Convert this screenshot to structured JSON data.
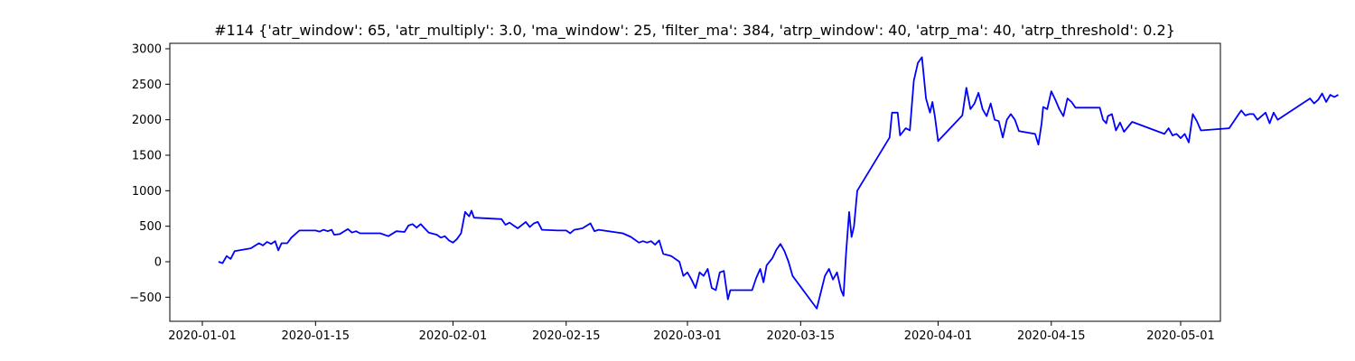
{
  "chart_data": {
    "type": "line",
    "title": "#114 {'atr_window': 65, 'atr_multiply': 3.0, 'ma_window': 25, 'filter_ma': 384, 'atrp_window': 40, 'atrp_ma': 40, 'atrp_threshold': 0.2}",
    "xlabel": "",
    "ylabel": "",
    "xlim": [
      "2019-12-28",
      "2020-05-02"
    ],
    "ylim": [
      -850,
      3100
    ],
    "grid": false,
    "x_ticks": [
      "2020-01-01",
      "2020-01-15",
      "2020-02-01",
      "2020-02-15",
      "2020-03-01",
      "2020-03-15",
      "2020-04-01",
      "2020-04-15",
      "2020-05-01"
    ],
    "y_ticks": [
      -500,
      0,
      500,
      1000,
      1500,
      2000,
      2500,
      3000
    ],
    "line_color": "#0000ff",
    "series": [
      {
        "points": [
          [
            "2020-01-03",
            0
          ],
          [
            "2020-01-03.5",
            -20
          ],
          [
            "2020-01-04",
            80
          ],
          [
            "2020-01-04.5",
            40
          ],
          [
            "2020-01-05",
            150
          ],
          [
            "2020-01-07",
            190
          ],
          [
            "2020-01-08",
            260
          ],
          [
            "2020-01-08.5",
            230
          ],
          [
            "2020-01-09",
            280
          ],
          [
            "2020-01-09.5",
            250
          ],
          [
            "2020-01-10",
            290
          ],
          [
            "2020-01-10.4",
            160
          ],
          [
            "2020-01-10.8",
            260
          ],
          [
            "2020-01-11.5",
            260
          ],
          [
            "2020-01-12",
            340
          ],
          [
            "2020-01-13",
            440
          ],
          [
            "2020-01-15",
            440
          ],
          [
            "2020-01-15.5",
            425
          ],
          [
            "2020-01-16",
            450
          ],
          [
            "2020-01-16.5",
            430
          ],
          [
            "2020-01-17",
            450
          ],
          [
            "2020-01-17.3",
            380
          ],
          [
            "2020-01-18",
            390
          ],
          [
            "2020-01-19",
            460
          ],
          [
            "2020-01-19.5",
            410
          ],
          [
            "2020-01-20",
            430
          ],
          [
            "2020-01-20.5",
            400
          ],
          [
            "2020-01-23",
            400
          ],
          [
            "2020-01-24",
            360
          ],
          [
            "2020-01-25",
            430
          ],
          [
            "2020-01-26",
            420
          ],
          [
            "2020-01-26.5",
            510
          ],
          [
            "2020-01-27",
            530
          ],
          [
            "2020-01-27.5",
            480
          ],
          [
            "2020-01-28",
            530
          ],
          [
            "2020-01-28.5",
            470
          ],
          [
            "2020-01-29",
            410
          ],
          [
            "2020-01-30",
            380
          ],
          [
            "2020-01-30.5",
            340
          ],
          [
            "2020-01-31",
            360
          ],
          [
            "2020-01-31.5",
            300
          ],
          [
            "2020-02-01",
            270
          ],
          [
            "2020-02-01.5",
            320
          ],
          [
            "2020-02-02",
            400
          ],
          [
            "2020-02-02.5",
            700
          ],
          [
            "2020-02-03",
            640
          ],
          [
            "2020-02-03.3",
            720
          ],
          [
            "2020-02-03.6",
            620
          ],
          [
            "2020-02-07",
            600
          ],
          [
            "2020-02-07.5",
            520
          ],
          [
            "2020-02-08",
            550
          ],
          [
            "2020-02-08.5",
            510
          ],
          [
            "2020-02-09",
            470
          ],
          [
            "2020-02-10",
            560
          ],
          [
            "2020-02-10.5",
            490
          ],
          [
            "2020-02-11",
            540
          ],
          [
            "2020-02-11.5",
            560
          ],
          [
            "2020-02-12",
            450
          ],
          [
            "2020-02-14",
            440
          ],
          [
            "2020-02-15",
            440
          ],
          [
            "2020-02-15.5",
            400
          ],
          [
            "2020-02-16",
            450
          ],
          [
            "2020-02-17",
            470
          ],
          [
            "2020-02-18",
            540
          ],
          [
            "2020-02-18.5",
            430
          ],
          [
            "2020-02-19",
            450
          ],
          [
            "2020-02-22",
            400
          ],
          [
            "2020-02-23",
            350
          ],
          [
            "2020-02-24",
            270
          ],
          [
            "2020-02-24.5",
            290
          ],
          [
            "2020-02-25",
            270
          ],
          [
            "2020-02-25.5",
            290
          ],
          [
            "2020-02-26",
            240
          ],
          [
            "2020-02-26.5",
            300
          ],
          [
            "2020-02-27",
            110
          ],
          [
            "2020-02-28",
            80
          ],
          [
            "2020-02-29",
            0
          ],
          [
            "2020-02-29.5",
            -200
          ],
          [
            "2020-03-01",
            -150
          ],
          [
            "2020-03-01.5",
            -250
          ],
          [
            "2020-03-02",
            -370
          ],
          [
            "2020-03-02.5",
            -150
          ],
          [
            "2020-03-03",
            -200
          ],
          [
            "2020-03-03.5",
            -100
          ],
          [
            "2020-03-04",
            -370
          ],
          [
            "2020-03-04.5",
            -400
          ],
          [
            "2020-03-05",
            -150
          ],
          [
            "2020-03-05.5",
            -130
          ],
          [
            "2020-03-06",
            -530
          ],
          [
            "2020-03-06.3",
            -400
          ],
          [
            "2020-03-09",
            -400
          ],
          [
            "2020-03-09.5",
            -230
          ],
          [
            "2020-03-10",
            -100
          ],
          [
            "2020-03-10.4",
            -290
          ],
          [
            "2020-03-10.8",
            -50
          ],
          [
            "2020-03-11.5",
            50
          ],
          [
            "2020-03-12",
            170
          ],
          [
            "2020-03-12.5",
            250
          ],
          [
            "2020-03-13",
            150
          ],
          [
            "2020-03-13.5",
            0
          ],
          [
            "2020-03-14",
            -200
          ],
          [
            "2020-03-17",
            -660
          ],
          [
            "2020-03-18",
            -200
          ],
          [
            "2020-03-18.5",
            -100
          ],
          [
            "2020-03-19",
            -250
          ],
          [
            "2020-03-19.5",
            -150
          ],
          [
            "2020-03-20",
            -400
          ],
          [
            "2020-03-20.3",
            -480
          ],
          [
            "2020-03-20.6",
            100
          ],
          [
            "2020-03-21",
            700
          ],
          [
            "2020-03-21.3",
            350
          ],
          [
            "2020-03-21.6",
            500
          ],
          [
            "2020-03-22",
            1000
          ],
          [
            "2020-03-26",
            1750
          ],
          [
            "2020-03-26.3",
            2100
          ],
          [
            "2020-03-27",
            2100
          ],
          [
            "2020-03-27.3",
            1780
          ],
          [
            "2020-03-28",
            1880
          ],
          [
            "2020-03-28.5",
            1850
          ],
          [
            "2020-03-29",
            2550
          ],
          [
            "2020-03-29.5",
            2800
          ],
          [
            "2020-03-30",
            2880
          ],
          [
            "2020-03-30.5",
            2300
          ],
          [
            "2020-03-31",
            2100
          ],
          [
            "2020-03-31.3",
            2250
          ],
          [
            "2020-03-31.6",
            2050
          ],
          [
            "2020-04-01",
            1700
          ],
          [
            "2020-04-04",
            2060
          ],
          [
            "2020-04-04.5",
            2450
          ],
          [
            "2020-04-05",
            2150
          ],
          [
            "2020-04-05.5",
            2230
          ],
          [
            "2020-04-06",
            2380
          ],
          [
            "2020-04-06.5",
            2150
          ],
          [
            "2020-04-07",
            2050
          ],
          [
            "2020-04-07.5",
            2230
          ],
          [
            "2020-04-08",
            2000
          ],
          [
            "2020-04-08.5",
            1980
          ],
          [
            "2020-04-09",
            1750
          ],
          [
            "2020-04-09.5",
            2000
          ],
          [
            "2020-04-10",
            2080
          ],
          [
            "2020-04-10.5",
            2000
          ],
          [
            "2020-04-11",
            1840
          ],
          [
            "2020-04-13",
            1800
          ],
          [
            "2020-04-13.4",
            1650
          ],
          [
            "2020-04-13.8",
            1950
          ],
          [
            "2020-04-14",
            2180
          ],
          [
            "2020-04-14.5",
            2150
          ],
          [
            "2020-04-15",
            2400
          ],
          [
            "2020-04-15.5",
            2280
          ],
          [
            "2020-04-16",
            2150
          ],
          [
            "2020-04-16.5",
            2050
          ],
          [
            "2020-04-17",
            2300
          ],
          [
            "2020-04-17.5",
            2250
          ],
          [
            "2020-04-18",
            2170
          ],
          [
            "2020-04-21",
            2170
          ],
          [
            "2020-04-21.4",
            2000
          ],
          [
            "2020-04-21.8",
            1950
          ],
          [
            "2020-04-22",
            2050
          ],
          [
            "2020-04-22.5",
            2080
          ],
          [
            "2020-04-23",
            1850
          ],
          [
            "2020-04-23.5",
            1960
          ],
          [
            "2020-04-24",
            1830
          ],
          [
            "2020-04-25",
            1970
          ],
          [
            "2020-04-29",
            1800
          ],
          [
            "2020-04-29.5",
            1880
          ],
          [
            "2020-04-30",
            1780
          ],
          [
            "2020-04-30.5",
            1800
          ],
          [
            "2020-05-01",
            1740
          ],
          [
            "2020-05-01.5",
            1800
          ],
          [
            "2020-05-02",
            1680
          ],
          [
            "2020-05-02.5",
            2080
          ],
          [
            "2020-05-03",
            1980
          ],
          [
            "2020-05-03.5",
            1850
          ],
          [
            "2020-05-07",
            1880
          ],
          [
            "2020-05-08",
            2050
          ],
          [
            "2020-05-08.5",
            2130
          ],
          [
            "2020-05-09",
            2060
          ],
          [
            "2020-05-09.5",
            2080
          ],
          [
            "2020-05-10",
            2080
          ],
          [
            "2020-05-10.5",
            2000
          ],
          [
            "2020-05-11",
            2050
          ],
          [
            "2020-05-11.5",
            2100
          ],
          [
            "2020-05-12",
            1950
          ],
          [
            "2020-05-12.5",
            2100
          ],
          [
            "2020-05-13",
            2000
          ],
          [
            "2020-05-17",
            2300
          ],
          [
            "2020-05-17.5",
            2230
          ],
          [
            "2020-05-18",
            2280
          ],
          [
            "2020-05-18.5",
            2370
          ],
          [
            "2020-05-19",
            2250
          ],
          [
            "2020-05-19.5",
            2350
          ],
          [
            "2020-05-20",
            2320
          ],
          [
            "2020-05-20.5",
            2350
          ]
        ]
      }
    ]
  }
}
